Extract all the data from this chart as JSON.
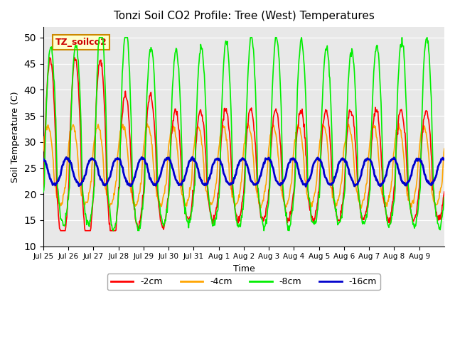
{
  "title": "Tonzi Soil CO2 Profile: Tree (West) Temperatures",
  "xlabel": "Time",
  "ylabel": "Soil Temperature (C)",
  "ylim": [
    10,
    52
  ],
  "yticks": [
    10,
    15,
    20,
    25,
    30,
    35,
    40,
    45,
    50
  ],
  "colors": {
    "-2cm": "#ff0000",
    "-4cm": "#ffa500",
    "-8cm": "#00ee00",
    "-16cm": "#0000cc"
  },
  "line_widths": {
    "-2cm": 1.2,
    "-4cm": 1.2,
    "-8cm": 1.2,
    "-16cm": 2.0
  },
  "bg_color": "#e8e8e8",
  "annotation_text": "TZ_soilco2",
  "annotation_color": "#cc0000",
  "annotation_bg": "#ffffcc",
  "annotation_edge": "#cc8800",
  "days": 16,
  "pts_per_day": 48
}
